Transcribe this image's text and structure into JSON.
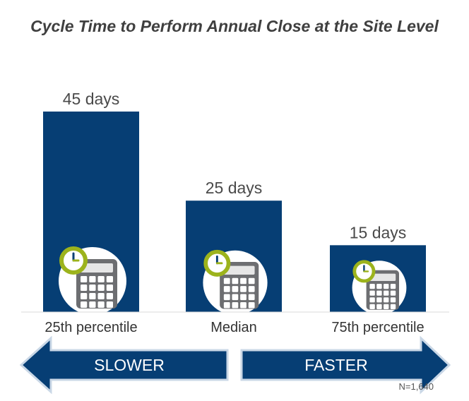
{
  "chart_data": {
    "type": "bar",
    "title": "Cycle Time to Perform Annual Close at the Site Level",
    "categories": [
      "25th percentile",
      "Median",
      "75th percentile"
    ],
    "values": [
      45,
      25,
      15
    ],
    "value_labels": [
      "45 days",
      "25 days",
      "15 days"
    ],
    "unit": "days",
    "xlabel": "",
    "ylabel": "",
    "ylim": [
      0,
      45
    ],
    "grid": false,
    "legend": "none",
    "bar_icon": "calculator-clock-icon"
  },
  "arrows": {
    "left_label": "SLOWER",
    "right_label": "FASTER"
  },
  "sample_note": "N=1,640",
  "colors": {
    "bar": "#063e74",
    "arrow_fill": "#063e74",
    "arrow_border": "#c9d7e6",
    "clock_ring": "#9cb31c",
    "icon_circle": "#ffffff",
    "calculator": "#6d6e71"
  }
}
